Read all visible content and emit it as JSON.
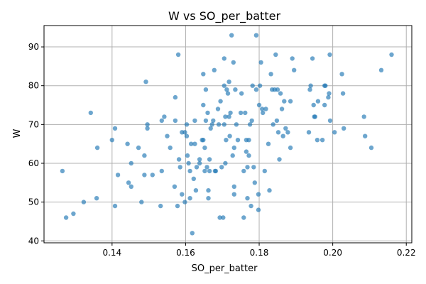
{
  "chart_data": {
    "type": "scatter",
    "title": "W vs SO_per_batter",
    "xlabel": "SO_per_batter",
    "ylabel": "W",
    "xlim": [
      0.1215,
      0.2215
    ],
    "ylim": [
      39.5,
      95.5
    ],
    "xticks": [
      0.14,
      0.16,
      0.18,
      0.2,
      0.22
    ],
    "xtick_labels": [
      "0.14",
      "0.16",
      "0.18",
      "0.20",
      "0.22"
    ],
    "yticks": [
      40,
      50,
      60,
      70,
      80,
      90
    ],
    "ytick_labels": [
      "40",
      "50",
      "60",
      "70",
      "80",
      "90"
    ],
    "grid": true,
    "point_color": "#1f77b4",
    "series": [
      {
        "points": [
          [
            0.1265,
            58
          ],
          [
            0.1275,
            46
          ],
          [
            0.1295,
            47
          ],
          [
            0.1323,
            50
          ],
          [
            0.1342,
            73
          ],
          [
            0.1358,
            51
          ],
          [
            0.136,
            64
          ],
          [
            0.14,
            66
          ],
          [
            0.1408,
            69
          ],
          [
            0.1408,
            49
          ],
          [
            0.1416,
            57
          ],
          [
            0.1442,
            65
          ],
          [
            0.1445,
            55
          ],
          [
            0.1452,
            54
          ],
          [
            0.1452,
            60
          ],
          [
            0.1472,
            64
          ],
          [
            0.148,
            50
          ],
          [
            0.1488,
            57
          ],
          [
            0.1488,
            62
          ],
          [
            0.1492,
            81
          ],
          [
            0.1496,
            70
          ],
          [
            0.1496,
            69
          ],
          [
            0.151,
            57
          ],
          [
            0.1532,
            49
          ],
          [
            0.1535,
            71
          ],
          [
            0.1535,
            58
          ],
          [
            0.1542,
            72
          ],
          [
            0.155,
            67
          ],
          [
            0.1558,
            64
          ],
          [
            0.157,
            54
          ],
          [
            0.1572,
            77
          ],
          [
            0.1572,
            71
          ],
          [
            0.1578,
            49
          ],
          [
            0.158,
            88
          ],
          [
            0.1582,
            61
          ],
          [
            0.1585,
            59
          ],
          [
            0.159,
            68
          ],
          [
            0.159,
            52
          ],
          [
            0.1598,
            50
          ],
          [
            0.1598,
            68
          ],
          [
            0.1603,
            67
          ],
          [
            0.1603,
            70
          ],
          [
            0.1605,
            62
          ],
          [
            0.1608,
            60
          ],
          [
            0.1612,
            51
          ],
          [
            0.1612,
            58
          ],
          [
            0.1615,
            65
          ],
          [
            0.1618,
            42
          ],
          [
            0.1622,
            56
          ],
          [
            0.1625,
            65
          ],
          [
            0.1625,
            71
          ],
          [
            0.1628,
            53
          ],
          [
            0.163,
            59
          ],
          [
            0.1638,
            60
          ],
          [
            0.1638,
            61
          ],
          [
            0.1645,
            66
          ],
          [
            0.1648,
            66
          ],
          [
            0.1648,
            83
          ],
          [
            0.1648,
            75
          ],
          [
            0.1652,
            58
          ],
          [
            0.1652,
            64
          ],
          [
            0.1655,
            79
          ],
          [
            0.1655,
            71
          ],
          [
            0.1658,
            59
          ],
          [
            0.166,
            73
          ],
          [
            0.1662,
            53
          ],
          [
            0.1662,
            51
          ],
          [
            0.1665,
            61
          ],
          [
            0.1665,
            58
          ],
          [
            0.1668,
            69
          ],
          [
            0.1672,
            70
          ],
          [
            0.1675,
            71
          ],
          [
            0.1678,
            84
          ],
          [
            0.168,
            58
          ],
          [
            0.1682,
            58
          ],
          [
            0.1688,
            74
          ],
          [
            0.169,
            70
          ],
          [
            0.1693,
            46
          ],
          [
            0.1695,
            76
          ],
          [
            0.1698,
            59
          ],
          [
            0.1702,
            46
          ],
          [
            0.1705,
            80
          ],
          [
            0.1705,
            70
          ],
          [
            0.1705,
            87
          ],
          [
            0.1708,
            60
          ],
          [
            0.1708,
            72
          ],
          [
            0.171,
            66
          ],
          [
            0.1712,
            79
          ],
          [
            0.1715,
            78
          ],
          [
            0.1718,
            72
          ],
          [
            0.1718,
            81
          ],
          [
            0.172,
            67
          ],
          [
            0.1722,
            73
          ],
          [
            0.1725,
            93
          ],
          [
            0.1728,
            62
          ],
          [
            0.173,
            86
          ],
          [
            0.1732,
            52
          ],
          [
            0.1732,
            54
          ],
          [
            0.1732,
            64
          ],
          [
            0.1735,
            79
          ],
          [
            0.1738,
            70
          ],
          [
            0.1742,
            66
          ],
          [
            0.175,
            73
          ],
          [
            0.1752,
            78
          ],
          [
            0.1758,
            46
          ],
          [
            0.1758,
            58
          ],
          [
            0.1762,
            73
          ],
          [
            0.1765,
            63
          ],
          [
            0.1765,
            66
          ],
          [
            0.1768,
            51
          ],
          [
            0.1768,
            59
          ],
          [
            0.1772,
            62
          ],
          [
            0.1772,
            66
          ],
          [
            0.1775,
            70
          ],
          [
            0.1778,
            49
          ],
          [
            0.178,
            71
          ],
          [
            0.1782,
            80
          ],
          [
            0.1785,
            59
          ],
          [
            0.1788,
            55
          ],
          [
            0.1792,
            93
          ],
          [
            0.1792,
            79
          ],
          [
            0.1798,
            48
          ],
          [
            0.1798,
            52
          ],
          [
            0.18,
            75
          ],
          [
            0.1802,
            80
          ],
          [
            0.1805,
            86
          ],
          [
            0.1808,
            74
          ],
          [
            0.181,
            73
          ],
          [
            0.1815,
            58
          ],
          [
            0.1818,
            74
          ],
          [
            0.1825,
            65
          ],
          [
            0.1828,
            53
          ],
          [
            0.1832,
            83
          ],
          [
            0.1835,
            79
          ],
          [
            0.1838,
            70
          ],
          [
            0.1842,
            79
          ],
          [
            0.1845,
            88
          ],
          [
            0.1848,
            71
          ],
          [
            0.185,
            79
          ],
          [
            0.1852,
            68
          ],
          [
            0.1855,
            61
          ],
          [
            0.1858,
            78
          ],
          [
            0.1862,
            74
          ],
          [
            0.1865,
            67
          ],
          [
            0.1868,
            76
          ],
          [
            0.1872,
            69
          ],
          [
            0.1878,
            68
          ],
          [
            0.1885,
            76
          ],
          [
            0.1885,
            64
          ],
          [
            0.189,
            87
          ],
          [
            0.1895,
            84
          ],
          [
            0.1935,
            68
          ],
          [
            0.1938,
            79
          ],
          [
            0.194,
            80
          ],
          [
            0.1945,
            87
          ],
          [
            0.1948,
            75
          ],
          [
            0.195,
            72
          ],
          [
            0.1952,
            72
          ],
          [
            0.1958,
            66
          ],
          [
            0.196,
            76
          ],
          [
            0.1972,
            66
          ],
          [
            0.1978,
            75
          ],
          [
            0.1978,
            80
          ],
          [
            0.198,
            80
          ],
          [
            0.1988,
            77
          ],
          [
            0.199,
            78
          ],
          [
            0.1992,
            88
          ],
          [
            0.1993,
            71
          ],
          [
            0.2005,
            68
          ],
          [
            0.2025,
            83
          ],
          [
            0.2028,
            78
          ],
          [
            0.203,
            69
          ],
          [
            0.2085,
            72
          ],
          [
            0.2088,
            67
          ],
          [
            0.2105,
            64
          ],
          [
            0.2132,
            84
          ],
          [
            0.216,
            88
          ]
        ]
      }
    ]
  }
}
